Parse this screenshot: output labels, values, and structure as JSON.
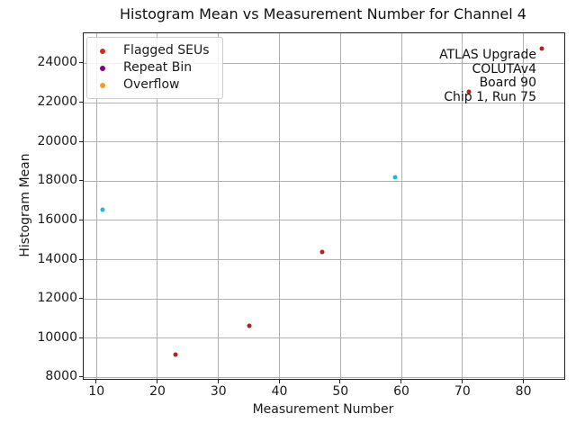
{
  "chart_data": {
    "type": "scatter",
    "title": "Histogram Mean vs Measurement Number for Channel 4",
    "xlabel": "Measurement Number",
    "ylabel": "Histogram Mean",
    "xlim": [
      7.9,
      86.7
    ],
    "ylim": [
      7930,
      25530
    ],
    "xticks": [
      10,
      20,
      30,
      40,
      50,
      60,
      70,
      80
    ],
    "yticks": [
      8000,
      10000,
      12000,
      14000,
      16000,
      18000,
      20000,
      22000,
      24000
    ],
    "grid": true,
    "grid_color": "#b0b0b0",
    "legend_position": "upper-left",
    "legend": [
      {
        "label": "Flagged SEUs",
        "color": "#d62728"
      },
      {
        "label": "Repeat Bin",
        "color": "#800080"
      },
      {
        "label": "Overflow",
        "color": "#ff9913"
      }
    ],
    "annotation_lines": [
      "ATLAS Upgrade",
      "COLUTAv4",
      "Board 90",
      "Chip 1, Run 75"
    ],
    "points": [
      {
        "x": 11,
        "y": 16550,
        "series": "normal",
        "color": "#17becf"
      },
      {
        "x": 23,
        "y": 9150,
        "series": "flagged",
        "color": "#b22222"
      },
      {
        "x": 35,
        "y": 10650,
        "series": "flagged",
        "color": "#b22222"
      },
      {
        "x": 47,
        "y": 14400,
        "series": "flagged",
        "color": "#b22222"
      },
      {
        "x": 59,
        "y": 18200,
        "series": "normal",
        "color": "#17becf"
      },
      {
        "x": 71,
        "y": 22550,
        "series": "flagged",
        "color": "#b22222"
      },
      {
        "x": 83,
        "y": 24750,
        "series": "flagged",
        "color": "#b22222"
      }
    ]
  }
}
